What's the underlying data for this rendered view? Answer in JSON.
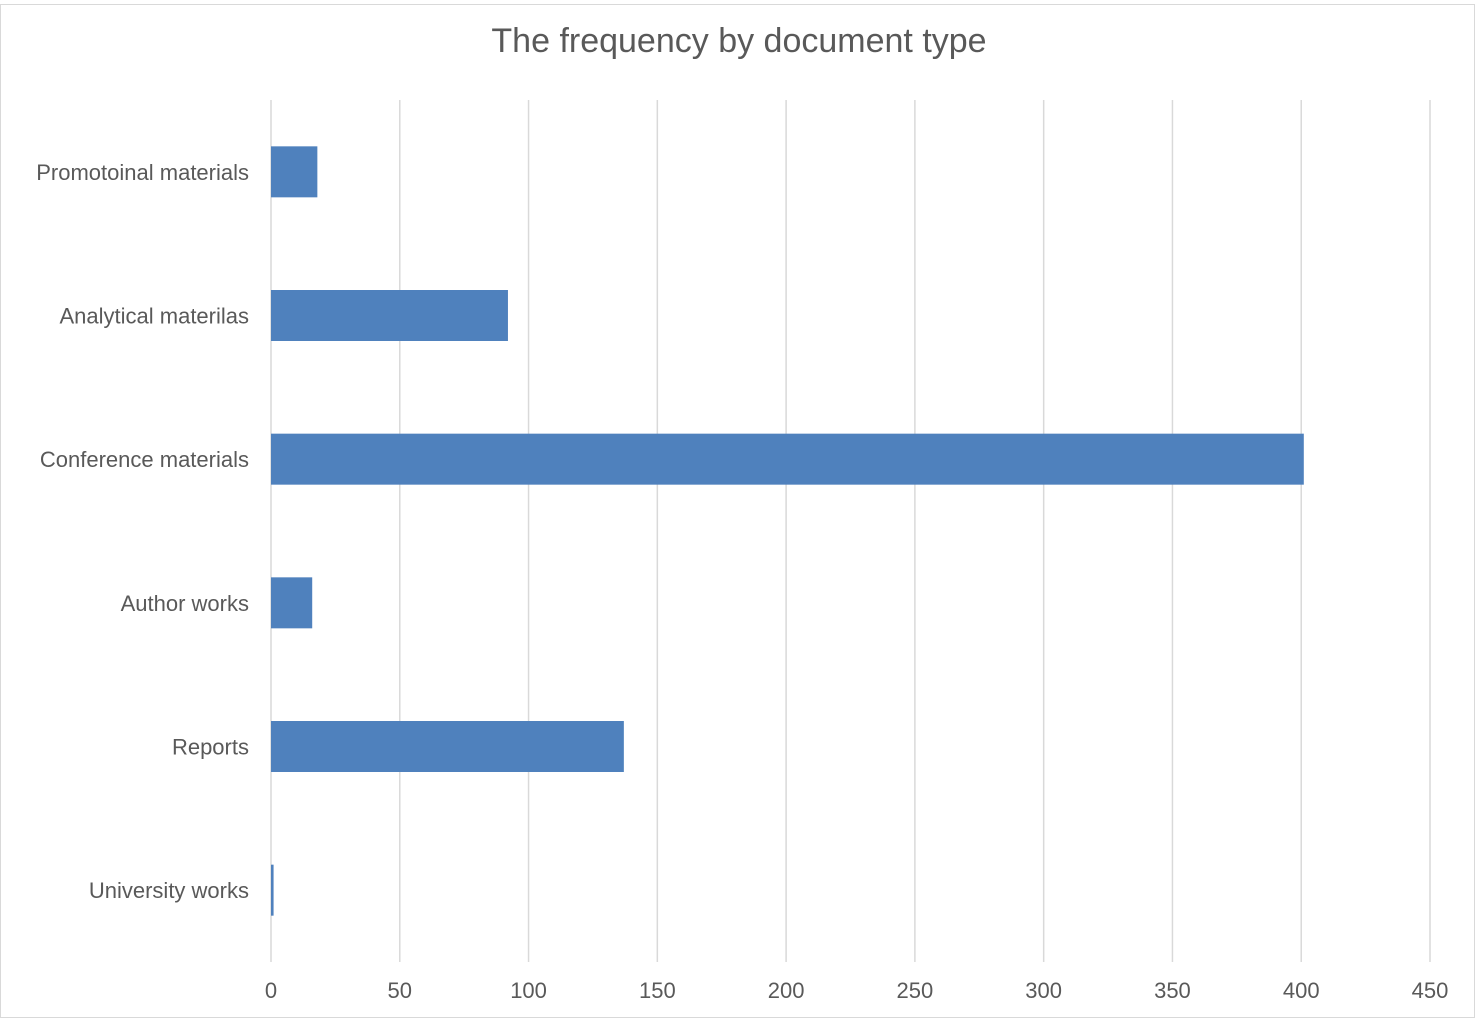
{
  "chart_data": {
    "type": "bar",
    "orientation": "horizontal",
    "title": "The frequency by document type",
    "xlabel": "",
    "ylabel": "",
    "categories": [
      "Promotoinal materials",
      "Analytical materilas",
      "Conference materials",
      "Author works",
      "Reports",
      "University works"
    ],
    "values": [
      18,
      92,
      401,
      16,
      137,
      1
    ],
    "xlim": [
      0,
      450
    ],
    "x_ticks": [
      "0",
      "50",
      "100",
      "150",
      "200",
      "250",
      "300",
      "350",
      "400",
      "450"
    ],
    "grid": "vertical",
    "legend": "none",
    "colors": {
      "bar": "#4f81bd",
      "grid": "#d9d9d9",
      "text": "#595959"
    }
  }
}
